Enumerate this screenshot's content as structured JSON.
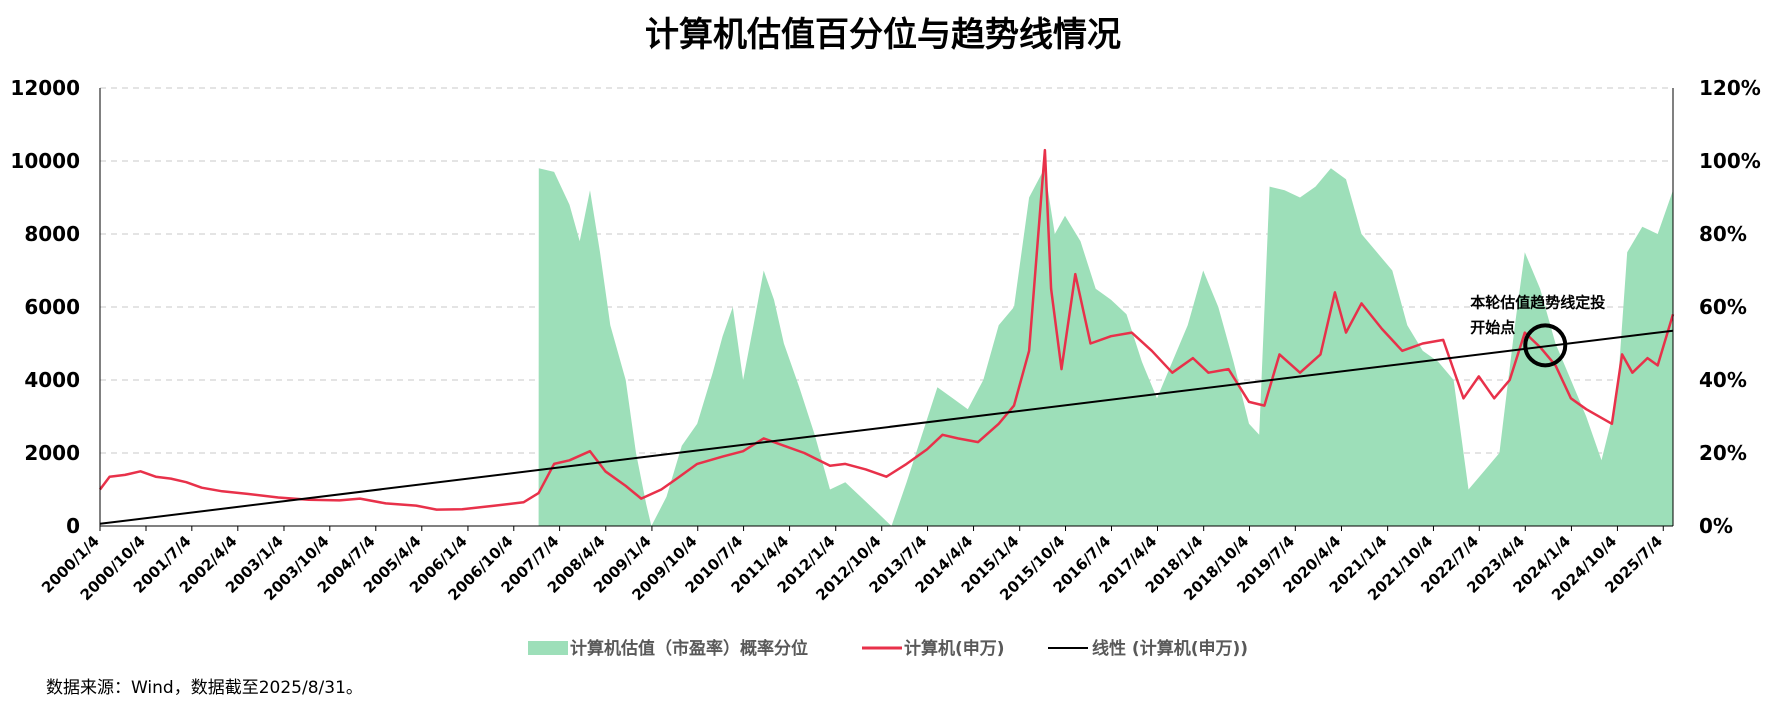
{
  "chart_data": {
    "type": "area+line",
    "title": "计算机估值百分位与趋势线情况",
    "source": "数据来源：Wind，数据截至2025/8/31。",
    "y_left": {
      "ticks": [
        "0",
        "2000",
        "4000",
        "6000",
        "8000",
        "10000",
        "12000"
      ],
      "range": [
        0,
        12000
      ]
    },
    "y_right": {
      "ticks": [
        "0%",
        "20%",
        "40%",
        "60%",
        "80%",
        "100%",
        "120%"
      ],
      "range": [
        0,
        1.2
      ]
    },
    "x_ticks": [
      "2000/1/4",
      "2000/10/4",
      "2001/7/4",
      "2002/4/4",
      "2003/1/4",
      "2003/10/4",
      "2004/7/4",
      "2005/4/4",
      "2006/1/4",
      "2006/10/4",
      "2007/7/4",
      "2008/4/4",
      "2009/1/4",
      "2009/10/4",
      "2010/7/4",
      "2011/4/4",
      "2012/1/4",
      "2012/10/4",
      "2013/7/4",
      "2014/4/4",
      "2015/1/4",
      "2015/10/4",
      "2016/7/4",
      "2017/4/4",
      "2018/1/4",
      "2018/10/4",
      "2019/7/4",
      "2020/4/4",
      "2021/1/4",
      "2021/10/4",
      "2022/7/4",
      "2023/4/4",
      "2024/1/4",
      "2024/10/4",
      "2025/7/4"
    ],
    "grid": "horizontal dashed",
    "legend_position": "bottom",
    "annotation": {
      "lines": [
        "本轮估值趋势线定投",
        "开始点"
      ],
      "date": "2023/8/1",
      "value": 4950
    },
    "series": [
      {
        "name": "计算机估值（市盈率）概率分位",
        "kind": "area",
        "axis": "right",
        "color": "#9ddfb9",
        "points": [
          [
            "2007/3/1",
            0
          ],
          [
            "2007/3/2",
            0.98
          ],
          [
            "2007/6/1",
            0.97
          ],
          [
            "2007/9/1",
            0.88
          ],
          [
            "2007/11/1",
            0.78
          ],
          [
            "2008/1/1",
            0.92
          ],
          [
            "2008/3/1",
            0.75
          ],
          [
            "2008/5/1",
            0.55
          ],
          [
            "2008/8/1",
            0.4
          ],
          [
            "2008/10/1",
            0.2
          ],
          [
            "2008/12/1",
            0.06
          ],
          [
            "2009/1/1",
            0.0
          ],
          [
            "2009/4/1",
            0.08
          ],
          [
            "2009/7/1",
            0.22
          ],
          [
            "2009/10/1",
            0.28
          ],
          [
            "2010/1/1",
            0.42
          ],
          [
            "2010/3/1",
            0.52
          ],
          [
            "2010/5/1",
            0.6
          ],
          [
            "2010/7/1",
            0.4
          ],
          [
            "2010/9/1",
            0.55
          ],
          [
            "2010/11/1",
            0.7
          ],
          [
            "2011/1/1",
            0.62
          ],
          [
            "2011/3/1",
            0.5
          ],
          [
            "2011/6/1",
            0.38
          ],
          [
            "2011/9/1",
            0.25
          ],
          [
            "2011/12/1",
            0.1
          ],
          [
            "2012/3/1",
            0.12
          ],
          [
            "2012/6/1",
            0.08
          ],
          [
            "2012/9/1",
            0.04
          ],
          [
            "2012/12/1",
            0.0
          ],
          [
            "2013/3/1",
            0.12
          ],
          [
            "2013/6/1",
            0.25
          ],
          [
            "2013/9/1",
            0.38
          ],
          [
            "2013/12/1",
            0.35
          ],
          [
            "2014/3/1",
            0.32
          ],
          [
            "2014/6/1",
            0.4
          ],
          [
            "2014/9/1",
            0.55
          ],
          [
            "2014/12/1",
            0.6
          ],
          [
            "2015/3/1",
            0.9
          ],
          [
            "2015/6/1",
            0.98
          ],
          [
            "2015/8/1",
            0.8
          ],
          [
            "2015/10/1",
            0.85
          ],
          [
            "2016/1/1",
            0.78
          ],
          [
            "2016/4/1",
            0.65
          ],
          [
            "2016/7/1",
            0.62
          ],
          [
            "2016/10/1",
            0.58
          ],
          [
            "2017/1/1",
            0.45
          ],
          [
            "2017/4/1",
            0.35
          ],
          [
            "2017/7/1",
            0.45
          ],
          [
            "2017/10/1",
            0.55
          ],
          [
            "2018/1/1",
            0.7
          ],
          [
            "2018/4/1",
            0.6
          ],
          [
            "2018/7/1",
            0.45
          ],
          [
            "2018/10/1",
            0.28
          ],
          [
            "2018/12/1",
            0.25
          ],
          [
            "2019/2/1",
            0.93
          ],
          [
            "2019/5/1",
            0.92
          ],
          [
            "2019/8/1",
            0.9
          ],
          [
            "2019/11/1",
            0.93
          ],
          [
            "2020/2/1",
            0.98
          ],
          [
            "2020/5/1",
            0.95
          ],
          [
            "2020/8/1",
            0.8
          ],
          [
            "2020/11/1",
            0.75
          ],
          [
            "2021/2/1",
            0.7
          ],
          [
            "2021/5/1",
            0.55
          ],
          [
            "2021/8/1",
            0.48
          ],
          [
            "2021/11/1",
            0.45
          ],
          [
            "2022/2/1",
            0.4
          ],
          [
            "2022/5/1",
            0.1
          ],
          [
            "2022/8/1",
            0.15
          ],
          [
            "2022/11/1",
            0.2
          ],
          [
            "2023/2/1",
            0.55
          ],
          [
            "2023/4/1",
            0.75
          ],
          [
            "2023/7/1",
            0.65
          ],
          [
            "2023/10/1",
            0.5
          ],
          [
            "2024/1/1",
            0.4
          ],
          [
            "2024/4/1",
            0.3
          ],
          [
            "2024/7/1",
            0.18
          ],
          [
            "2024/10/1",
            0.35
          ],
          [
            "2024/12/1",
            0.75
          ],
          [
            "2025/3/1",
            0.82
          ],
          [
            "2025/6/1",
            0.8
          ],
          [
            "2025/8/31",
            0.92
          ],
          [
            "2025/8/31",
            0
          ]
        ]
      },
      {
        "name": "计算机(申万)",
        "kind": "line",
        "axis": "left",
        "color": "#e8314a",
        "points": [
          [
            "2000/1/4",
            1000
          ],
          [
            "2000/3/1",
            1350
          ],
          [
            "2000/6/1",
            1400
          ],
          [
            "2000/9/1",
            1500
          ],
          [
            "2000/12/1",
            1350
          ],
          [
            "2001/3/1",
            1300
          ],
          [
            "2001/6/1",
            1200
          ],
          [
            "2001/9/1",
            1050
          ],
          [
            "2002/1/1",
            950
          ],
          [
            "2002/6/1",
            880
          ],
          [
            "2002/12/1",
            780
          ],
          [
            "2003/6/1",
            720
          ],
          [
            "2003/12/1",
            700
          ],
          [
            "2004/4/1",
            750
          ],
          [
            "2004/9/1",
            620
          ],
          [
            "2005/3/1",
            560
          ],
          [
            "2005/7/1",
            450
          ],
          [
            "2005/12/1",
            460
          ],
          [
            "2006/6/1",
            550
          ],
          [
            "2006/12/1",
            650
          ],
          [
            "2007/3/1",
            900
          ],
          [
            "2007/6/1",
            1700
          ],
          [
            "2007/9/1",
            1800
          ],
          [
            "2008/1/1",
            2050
          ],
          [
            "2008/4/1",
            1500
          ],
          [
            "2008/8/1",
            1100
          ],
          [
            "2008/11/1",
            750
          ],
          [
            "2009/3/1",
            1000
          ],
          [
            "2009/6/1",
            1300
          ],
          [
            "2009/10/1",
            1700
          ],
          [
            "2010/3/1",
            1900
          ],
          [
            "2010/7/1",
            2050
          ],
          [
            "2010/11/1",
            2400
          ],
          [
            "2011/3/1",
            2200
          ],
          [
            "2011/7/1",
            2000
          ],
          [
            "2011/12/1",
            1650
          ],
          [
            "2012/3/1",
            1700
          ],
          [
            "2012/7/1",
            1550
          ],
          [
            "2012/11/1",
            1350
          ],
          [
            "2013/3/1",
            1700
          ],
          [
            "2013/7/1",
            2100
          ],
          [
            "2013/10/1",
            2500
          ],
          [
            "2014/1/1",
            2400
          ],
          [
            "2014/5/1",
            2300
          ],
          [
            "2014/9/1",
            2800
          ],
          [
            "2014/12/1",
            3300
          ],
          [
            "2015/3/1",
            4800
          ],
          [
            "2015/6/3",
            10300
          ],
          [
            "2015/7/10",
            6500
          ],
          [
            "2015/9/10",
            4300
          ],
          [
            "2015/12/1",
            6900
          ],
          [
            "2016/3/1",
            5000
          ],
          [
            "2016/7/1",
            5200
          ],
          [
            "2016/11/1",
            5300
          ],
          [
            "2017/3/1",
            4800
          ],
          [
            "2017/7/1",
            4200
          ],
          [
            "2017/11/1",
            4600
          ],
          [
            "2018/2/1",
            4200
          ],
          [
            "2018/6/1",
            4300
          ],
          [
            "2018/10/1",
            3400
          ],
          [
            "2019/1/1",
            3300
          ],
          [
            "2019/4/1",
            4700
          ],
          [
            "2019/8/1",
            4200
          ],
          [
            "2019/12/1",
            4700
          ],
          [
            "2020/2/25",
            6400
          ],
          [
            "2020/5/1",
            5300
          ],
          [
            "2020/8/1",
            6100
          ],
          [
            "2020/12/1",
            5400
          ],
          [
            "2021/4/1",
            4800
          ],
          [
            "2021/8/1",
            5000
          ],
          [
            "2021/12/1",
            5100
          ],
          [
            "2022/4/1",
            3500
          ],
          [
            "2022/7/1",
            4100
          ],
          [
            "2022/10/1",
            3500
          ],
          [
            "2023/1/1",
            4000
          ],
          [
            "2023/4/1",
            5300
          ],
          [
            "2023/7/1",
            4900
          ],
          [
            "2023/10/1",
            4400
          ],
          [
            "2024/1/1",
            3500
          ],
          [
            "2024/4/1",
            3200
          ],
          [
            "2024/9/1",
            2800
          ],
          [
            "2024/11/1",
            4700
          ],
          [
            "2025/1/1",
            4200
          ],
          [
            "2025/4/1",
            4600
          ],
          [
            "2025/6/1",
            4400
          ],
          [
            "2025/8/31",
            5800
          ]
        ]
      },
      {
        "name": "线性 (计算机(申万))",
        "kind": "line",
        "axis": "left",
        "color": "#000000",
        "points": [
          [
            "2000/1/4",
            60
          ],
          [
            "2025/8/31",
            5350
          ]
        ]
      }
    ]
  }
}
